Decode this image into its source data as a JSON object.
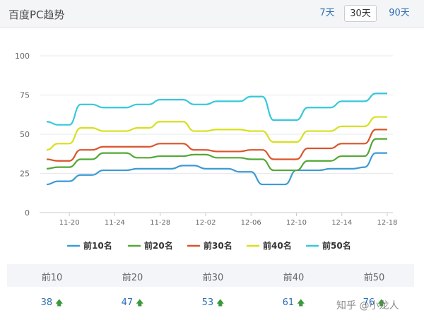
{
  "header": {
    "title": "百度PC趋势",
    "ranges": [
      "7天",
      "30天",
      "90天"
    ],
    "active_range": "30天"
  },
  "chart_data": {
    "type": "line",
    "x": [
      "11-18",
      "11-19",
      "11-20",
      "11-21",
      "11-22",
      "11-23",
      "11-24",
      "11-25",
      "11-26",
      "11-27",
      "11-28",
      "11-29",
      "11-30",
      "12-01",
      "12-02",
      "12-03",
      "12-04",
      "12-05",
      "12-06",
      "12-07",
      "12-08",
      "12-09",
      "12-10",
      "12-11",
      "12-12",
      "12-13",
      "12-14",
      "12-15",
      "12-16",
      "12-17",
      "12-18"
    ],
    "x_ticks": [
      "11-20",
      "11-24",
      "11-28",
      "12-02",
      "12-06",
      "12-10",
      "12-14",
      "12-18"
    ],
    "ylim": [
      0,
      100
    ],
    "y_ticks": [
      0,
      25,
      50,
      75,
      100
    ],
    "grid": true,
    "legend": "bottom",
    "series": [
      {
        "name": "前10名",
        "color": "#3a9bd5",
        "values": [
          18,
          20,
          20,
          24,
          24,
          27,
          27,
          27,
          28,
          28,
          28,
          28,
          30,
          30,
          28,
          28,
          28,
          26,
          26,
          18,
          18,
          18,
          27,
          27,
          27,
          28,
          28,
          28,
          29,
          38,
          38
        ]
      },
      {
        "name": "前20名",
        "color": "#52a834",
        "values": [
          28,
          29,
          29,
          34,
          34,
          38,
          38,
          38,
          35,
          35,
          36,
          36,
          36,
          37,
          37,
          35,
          35,
          35,
          34,
          34,
          27,
          27,
          27,
          33,
          33,
          33,
          36,
          36,
          36,
          47,
          47
        ]
      },
      {
        "name": "前30名",
        "color": "#d9552b",
        "values": [
          34,
          33,
          33,
          40,
          40,
          42,
          42,
          42,
          42,
          42,
          44,
          44,
          44,
          40,
          40,
          39,
          39,
          39,
          40,
          40,
          34,
          34,
          34,
          41,
          41,
          41,
          44,
          44,
          44,
          53,
          53
        ]
      },
      {
        "name": "前40名",
        "color": "#d8df1e",
        "values": [
          40,
          44,
          44,
          54,
          54,
          52,
          52,
          52,
          54,
          54,
          58,
          58,
          58,
          52,
          52,
          53,
          53,
          53,
          52,
          52,
          45,
          45,
          45,
          52,
          52,
          52,
          55,
          55,
          55,
          61,
          61
        ]
      },
      {
        "name": "前50名",
        "color": "#35c8dc",
        "values": [
          58,
          56,
          56,
          69,
          69,
          67,
          67,
          67,
          69,
          69,
          72,
          72,
          72,
          69,
          69,
          71,
          71,
          71,
          74,
          74,
          59,
          59,
          59,
          67,
          67,
          67,
          71,
          71,
          71,
          76,
          76
        ]
      }
    ]
  },
  "stats": [
    {
      "label": "前10",
      "value": "38",
      "trend": "up-arrow-icon"
    },
    {
      "label": "前20",
      "value": "47",
      "trend": "up-arrow-icon"
    },
    {
      "label": "前30",
      "value": "53",
      "trend": "up-arrow-icon"
    },
    {
      "label": "前40",
      "value": "61",
      "trend": "up-arrow-icon"
    },
    {
      "label": "前50",
      "value": "76",
      "trend": "up-arrow-icon"
    }
  ],
  "watermark": "知乎 @小龙人"
}
